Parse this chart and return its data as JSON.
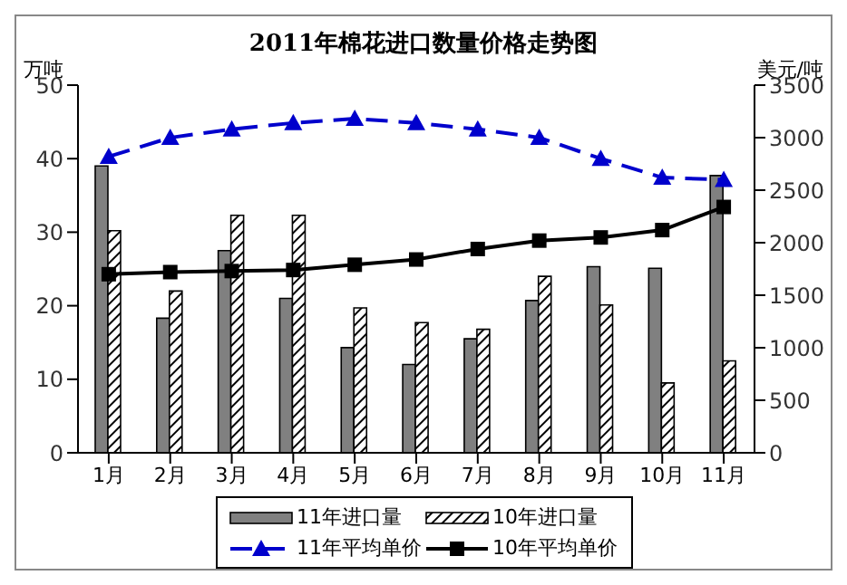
{
  "chart_data": {
    "type": "bar",
    "title": "2011年棉花进口数量价格走势图",
    "ylabel": "万吨",
    "y2label": "美元/吨",
    "categories": [
      "1月",
      "2月",
      "3月",
      "4月",
      "5月",
      "6月",
      "7月",
      "8月",
      "9月",
      "10月",
      "11月"
    ],
    "series": [
      {
        "name": "11年进口量",
        "color": "#808080",
        "values": [
          39,
          18.3,
          27.5,
          21,
          14.3,
          12,
          15.5,
          20.7,
          25.3,
          25.1,
          37.7
        ]
      },
      {
        "name": "10年进口量",
        "color": "#000000",
        "values": [
          30.2,
          22,
          32.3,
          32.3,
          19.7,
          17.7,
          16.8,
          24,
          20.1,
          9.5,
          12.5
        ]
      },
      {
        "name": "11年平均单价",
        "type": "line",
        "axis": "y2",
        "color": "#0000cc",
        "line_style": "dashed",
        "marker": "triangle",
        "values": [
          2820,
          3000,
          3080,
          3140,
          3180,
          3140,
          3080,
          3000,
          2800,
          2620,
          2600
        ]
      },
      {
        "name": "10年平均单价",
        "type": "line",
        "axis": "y2",
        "color": "#000000",
        "line_style": "solid",
        "marker": "square",
        "values": [
          1700,
          1720,
          1730,
          1740,
          1790,
          1840,
          1940,
          2020,
          2050,
          2120,
          2340
        ]
      }
    ],
    "ylim": [
      0,
      50
    ],
    "yticks": [
      0,
      10,
      20,
      30,
      40,
      50
    ],
    "y2lim": [
      0,
      3500
    ],
    "y2ticks": [
      0,
      500,
      1000,
      1500,
      2000,
      2500,
      3000,
      3500
    ],
    "grid": false,
    "legend": "bottom"
  }
}
